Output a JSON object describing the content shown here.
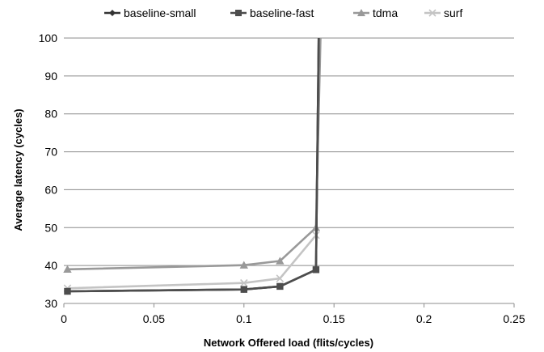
{
  "chart_data": {
    "type": "line",
    "title": "",
    "xlabel": "Network Offered load (flits/cycles)",
    "ylabel": "Average latency (cycles)",
    "xlim": [
      0,
      0.25
    ],
    "ylim": [
      30,
      100
    ],
    "x_ticks": [
      0,
      0.05,
      0.1,
      0.15,
      0.2,
      0.25
    ],
    "x_tick_labels": [
      "0",
      "0.05",
      "0.1",
      "0.15",
      "0.2",
      "0.25"
    ],
    "y_ticks": [
      30,
      40,
      50,
      60,
      70,
      80,
      90,
      100
    ],
    "y_tick_labels": [
      "30",
      "40",
      "50",
      "60",
      "70",
      "80",
      "90",
      "100"
    ],
    "grid": "horizontal",
    "legend_position": "top",
    "series": [
      {
        "name": "baseline-small",
        "marker": "diamond",
        "color": "#333333",
        "x": [
          0.002,
          0.1,
          0.12,
          0.14,
          0.1415
        ],
        "y": [
          33.2,
          33.7,
          34.5,
          38.9,
          100
        ]
      },
      {
        "name": "baseline-fast",
        "marker": "square",
        "color": "#4d4d4d",
        "x": [
          0.002,
          0.1,
          0.12,
          0.14,
          0.1415
        ],
        "y": [
          33.2,
          33.7,
          34.5,
          38.9,
          100
        ]
      },
      {
        "name": "tdma",
        "marker": "triangle",
        "color": "#999999",
        "x": [
          0.002,
          0.1,
          0.12,
          0.14,
          0.1425
        ],
        "y": [
          39.0,
          40.1,
          41.2,
          50.0,
          100
        ]
      },
      {
        "name": "surf",
        "marker": "x",
        "color": "#c4c4c4",
        "x": [
          0.002,
          0.1,
          0.12,
          0.14,
          0.142
        ],
        "y": [
          34.0,
          35.4,
          36.6,
          48.0,
          100
        ]
      }
    ]
  }
}
